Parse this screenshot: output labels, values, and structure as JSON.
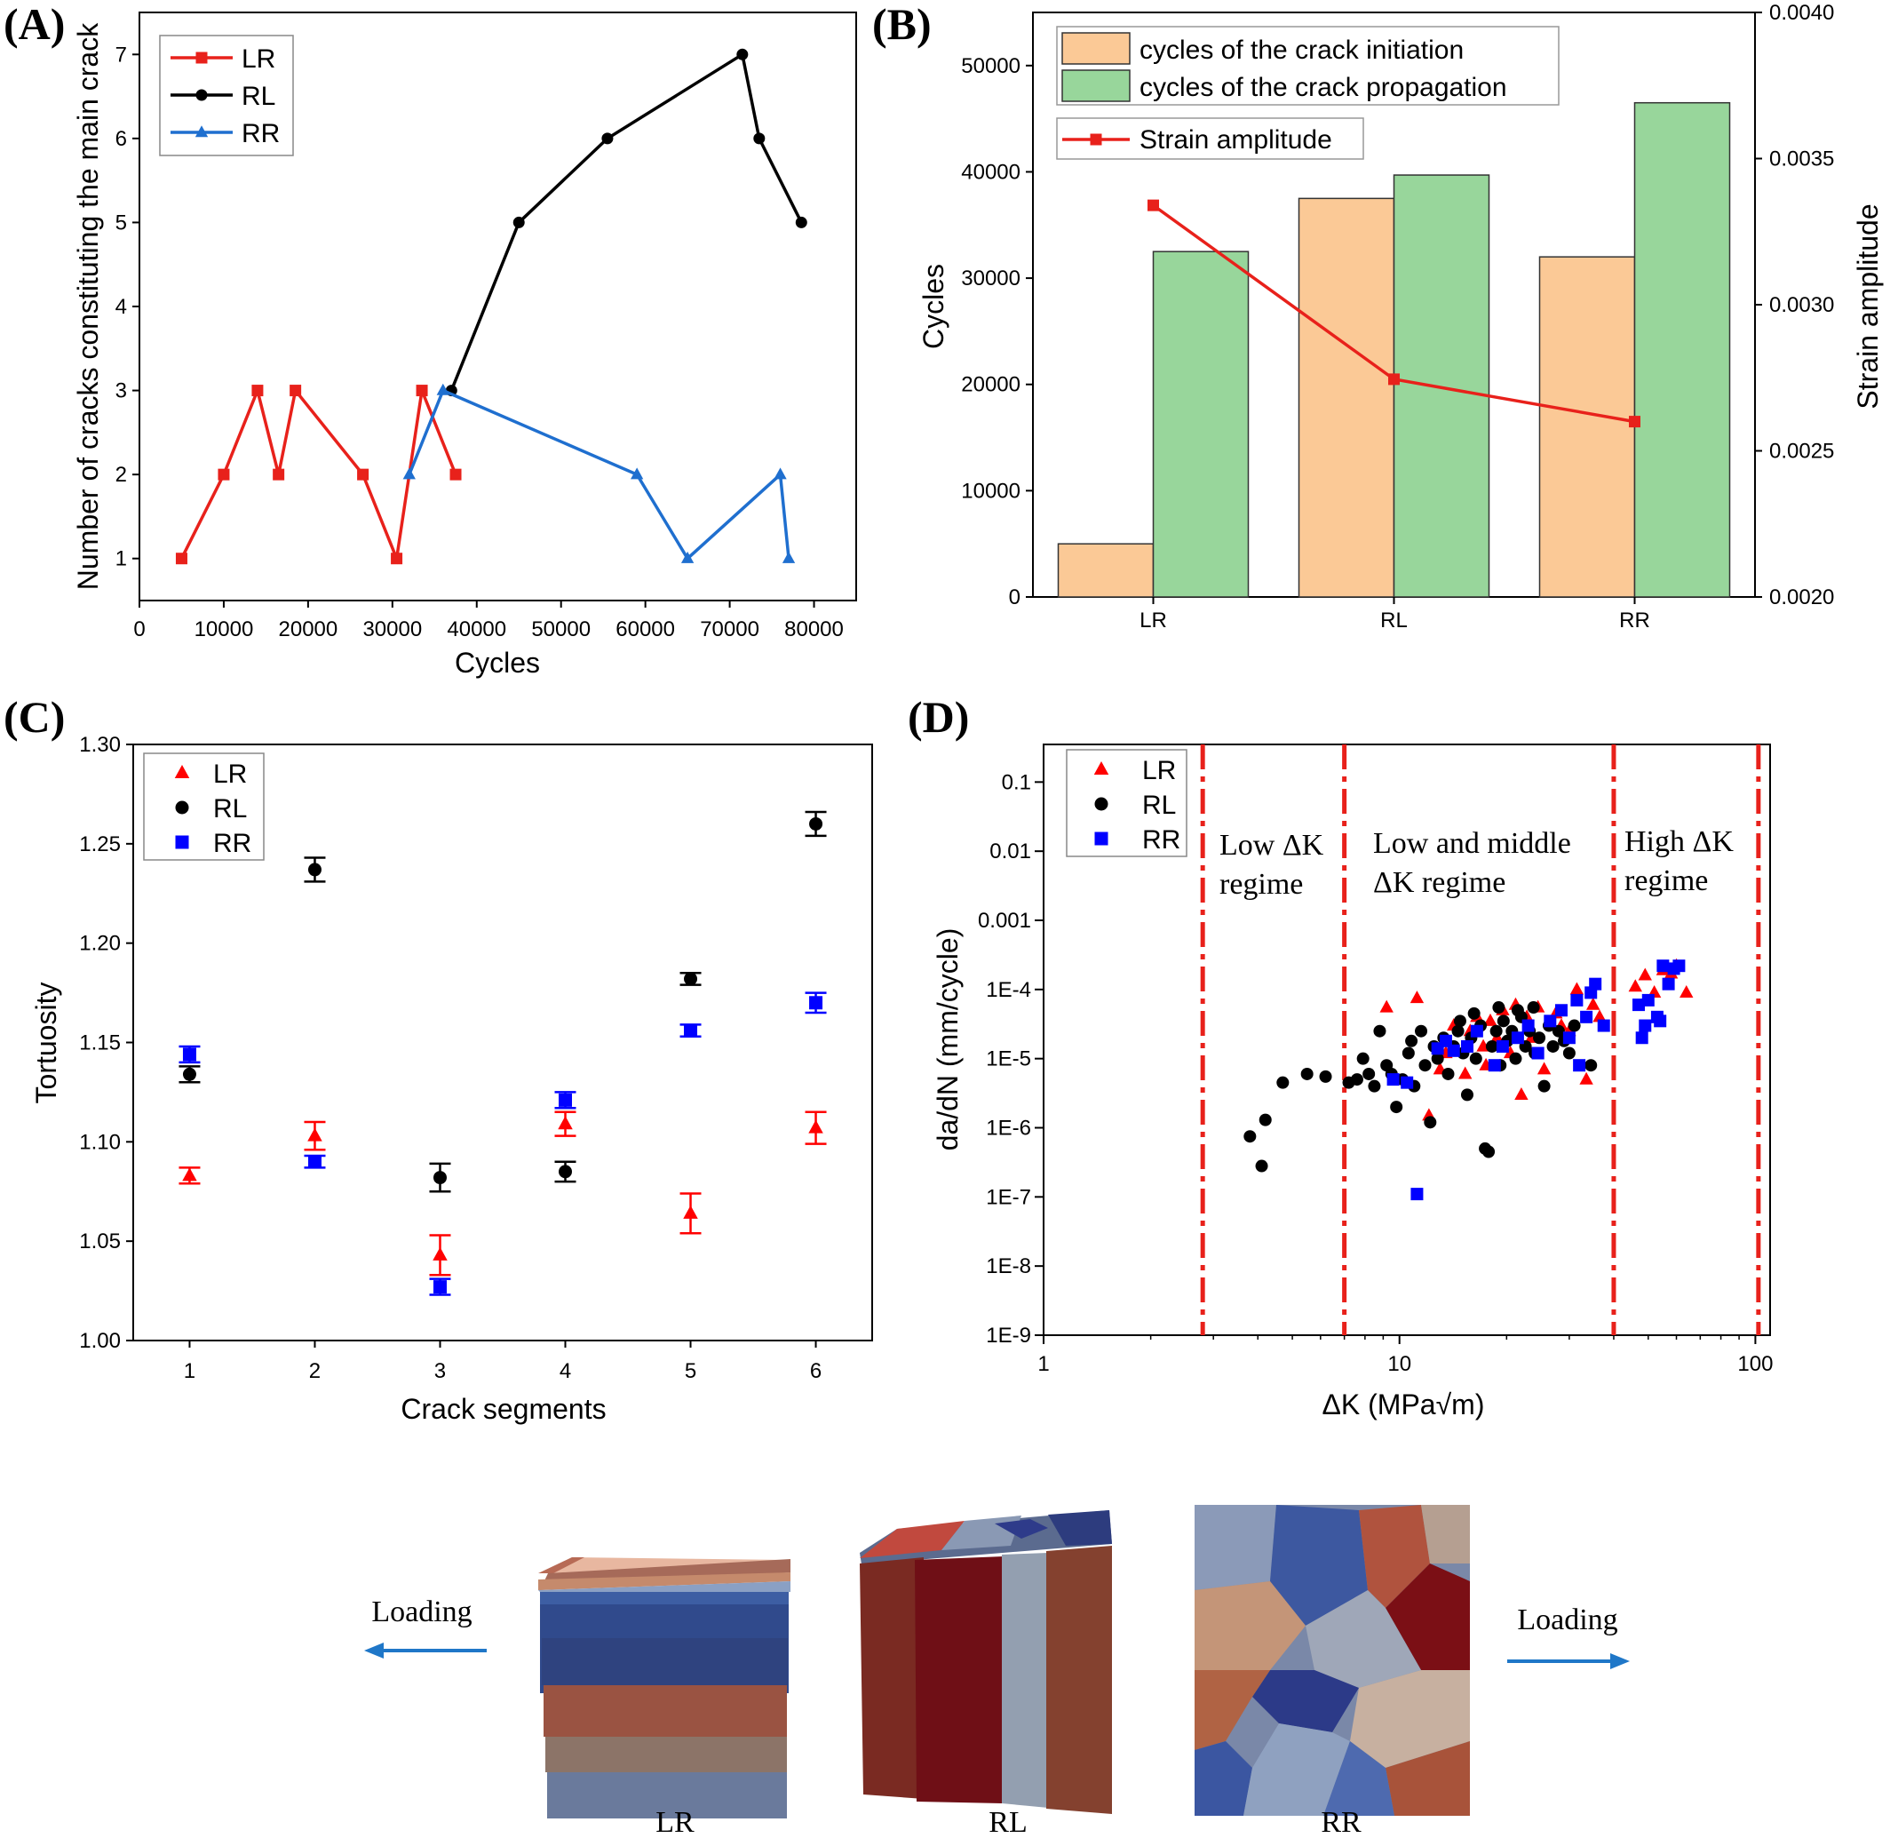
{
  "chart_data": [
    {
      "panel": "(A)",
      "type": "line",
      "xlabel": "Cycles",
      "ylabel": "Number of cracks constituting the main crack",
      "xlim": [
        0,
        85000
      ],
      "ylim": [
        0.5,
        7.5
      ],
      "xticks": [
        "0",
        "10000",
        "20000",
        "30000",
        "40000",
        "50000",
        "60000",
        "70000",
        "80000"
      ],
      "yticks": [
        "1",
        "2",
        "3",
        "4",
        "5",
        "6",
        "7"
      ],
      "legend_position": "top-left",
      "series": [
        {
          "name": "LR",
          "color": "#e8211b",
          "marker": "square",
          "x": [
            5000,
            10000,
            14000,
            16500,
            18500,
            26500,
            30500,
            33500,
            37500
          ],
          "y": [
            1,
            2,
            3,
            2,
            3,
            2,
            1,
            3,
            2
          ]
        },
        {
          "name": "RL",
          "color": "#000000",
          "marker": "circle",
          "x": [
            37000,
            45000,
            55500,
            71500,
            73500,
            78500
          ],
          "y": [
            3,
            5,
            6,
            7,
            6,
            5
          ]
        },
        {
          "name": "RR",
          "color": "#1f6fcf",
          "marker": "triangle",
          "x": [
            32000,
            36000,
            59000,
            65000,
            76000,
            77000
          ],
          "y": [
            2,
            3,
            2,
            1,
            2,
            1
          ]
        }
      ]
    },
    {
      "panel": "(B)",
      "type": "bar",
      "categories": [
        "LR",
        "RL",
        "RR"
      ],
      "ylabel": "Cycles",
      "y2label": "Strain amplitude",
      "ylim": [
        0,
        55000
      ],
      "y2lim": [
        0.002,
        0.004
      ],
      "yticks": [
        "0",
        "10000",
        "20000",
        "30000",
        "40000",
        "50000"
      ],
      "y2ticks": [
        "0.0020",
        "0.0025",
        "0.0030",
        "0.0035",
        "0.0040"
      ],
      "legend_position": "top",
      "series": [
        {
          "name": "cycles of the crack initiation",
          "color": "#fbc996",
          "values": [
            5000,
            37500,
            32000
          ]
        },
        {
          "name": "cycles of the crack propagation",
          "color": "#98d69b",
          "values": [
            32500,
            39700,
            46500
          ]
        }
      ],
      "line_series": {
        "name": "Strain amplitude",
        "color": "#e8211b",
        "values": [
          0.00334,
          0.002745,
          0.0026
        ]
      }
    },
    {
      "panel": "(C)",
      "type": "scatter",
      "xlabel": "Crack segments",
      "ylabel": "Tortuosity",
      "xlim": [
        0.55,
        6.45
      ],
      "ylim": [
        1.0,
        1.3
      ],
      "xticks": [
        "1",
        "2",
        "3",
        "4",
        "5",
        "6"
      ],
      "yticks": [
        "1.00",
        "1.05",
        "1.10",
        "1.15",
        "1.20",
        "1.25",
        "1.30"
      ],
      "legend_position": "top-left",
      "series": [
        {
          "name": "LR",
          "color": "#ff0000",
          "marker": "triangle",
          "x": [
            1,
            2,
            3,
            4,
            5,
            6
          ],
          "y": [
            1.083,
            1.103,
            1.043,
            1.109,
            1.064,
            1.107
          ],
          "err": [
            0.004,
            0.007,
            0.01,
            0.006,
            0.01,
            0.008
          ]
        },
        {
          "name": "RL",
          "color": "#000000",
          "marker": "circle",
          "x": [
            1,
            2,
            3,
            4,
            5,
            6
          ],
          "y": [
            1.134,
            1.237,
            1.082,
            1.085,
            1.182,
            1.26
          ],
          "err": [
            0.004,
            0.006,
            0.007,
            0.005,
            0.003,
            0.006
          ]
        },
        {
          "name": "RR",
          "color": "#0000ff",
          "marker": "square",
          "x": [
            1,
            2,
            3,
            4,
            5,
            6
          ],
          "y": [
            1.144,
            1.09,
            1.027,
            1.121,
            1.156,
            1.17
          ],
          "err": [
            0.004,
            0.003,
            0.004,
            0.004,
            0.003,
            0.005
          ]
        }
      ]
    },
    {
      "panel": "(D)",
      "type": "scatter",
      "xlabel": "ΔK (MPa√m)",
      "ylabel": "da/dN (mm/cycle)",
      "xscale": "log",
      "yscale": "log",
      "xlim": [
        1,
        110
      ],
      "ylim": [
        1e-09,
        0.35
      ],
      "xticks": [
        "1",
        "10",
        "100"
      ],
      "yticks": [
        "1E-9",
        "1E-8",
        "1E-7",
        "1E-6",
        "1E-5",
        "1E-4",
        "0.001",
        "0.01",
        "0.1"
      ],
      "legend_position": "top-left",
      "regime_boundaries": [
        2.8,
        7.0,
        40.0,
        102.0
      ],
      "regime_labels": [
        {
          "lines": [
            "Low ΔK",
            "regime"
          ]
        },
        {
          "lines": [
            "Low  and middle",
            "ΔK regime"
          ]
        },
        {
          "lines": [
            "High ΔK",
            "regime"
          ]
        }
      ],
      "series": [
        {
          "name": "LR",
          "color": "#ff0000",
          "marker": "triangle",
          "points": [
            [
              9.2,
              5.5e-05
            ],
            [
              11.2,
              7.5e-05
            ],
            [
              12.1,
              1.5e-06
            ],
            [
              13.5,
              1.2e-05
            ],
            [
              14.2,
              3e-05
            ],
            [
              15.3,
              6e-06
            ],
            [
              15.8,
              2.5e-05
            ],
            [
              16.5,
              4e-05
            ],
            [
              17.2,
              1.5e-05
            ],
            [
              18,
              3.5e-05
            ],
            [
              18.8,
              2e-05
            ],
            [
              19.5,
              5e-05
            ],
            [
              20.5,
              1.2e-05
            ],
            [
              21.2,
              6e-05
            ],
            [
              22,
              3e-06
            ],
            [
              22.8,
              4e-05
            ],
            [
              23.5,
              2e-05
            ],
            [
              25.5,
              7e-06
            ],
            [
              27.5,
              4.5e-05
            ],
            [
              28.5,
              3e-05
            ],
            [
              31.5,
              0.0001
            ],
            [
              33.5,
              5e-06
            ],
            [
              35,
              6e-05
            ],
            [
              36.5,
              4e-05
            ],
            [
              46,
              0.00011
            ],
            [
              49,
              0.00016
            ],
            [
              52,
              9e-05
            ],
            [
              55,
              0.00019
            ],
            [
              58,
              0.00017
            ],
            [
              60,
              0.00022
            ],
            [
              64,
              9e-05
            ],
            [
              17.5,
              8e-06
            ],
            [
              24.5,
              5.5e-05
            ],
            [
              30,
              2.5e-05
            ],
            [
              13,
              7e-06
            ]
          ]
        },
        {
          "name": "RL",
          "color": "#000000",
          "marker": "circle",
          "points": [
            [
              3.8,
              7.5e-07
            ],
            [
              4.1,
              2.8e-07
            ],
            [
              4.2,
              1.3e-06
            ],
            [
              4.7,
              4.5e-06
            ],
            [
              5.5,
              6e-06
            ],
            [
              6.2,
              5.5e-06
            ],
            [
              7.2,
              4.5e-06
            ],
            [
              7.6,
              5e-06
            ],
            [
              7.9,
              1e-05
            ],
            [
              8.2,
              6e-06
            ],
            [
              8.5,
              4e-06
            ],
            [
              8.8,
              2.5e-05
            ],
            [
              9.2,
              8e-06
            ],
            [
              9.5,
              6e-06
            ],
            [
              9.8,
              2e-06
            ],
            [
              10.2,
              5e-06
            ],
            [
              10.6,
              1.2e-05
            ],
            [
              11,
              4e-06
            ],
            [
              11.5,
              2.5e-05
            ],
            [
              11.8,
              8e-06
            ],
            [
              12.2,
              1.2e-06
            ],
            [
              12.8,
              1e-05
            ],
            [
              13.3,
              2e-05
            ],
            [
              13.7,
              6e-06
            ],
            [
              14.2,
              1.5e-05
            ],
            [
              14.6,
              2.5e-05
            ],
            [
              15.1,
              1.2e-05
            ],
            [
              15.5,
              3e-06
            ],
            [
              15.9,
              2e-05
            ],
            [
              16.4,
              1e-05
            ],
            [
              16.9,
              3e-05
            ],
            [
              17.4,
              5e-07
            ],
            [
              17.8,
              4.5e-07
            ],
            [
              18.2,
              1.5e-05
            ],
            [
              18.7,
              2.5e-05
            ],
            [
              19.2,
              8e-06
            ],
            [
              19.6,
              3.5e-05
            ],
            [
              20.1,
              1.8e-05
            ],
            [
              20.7,
              2.5e-05
            ],
            [
              21.2,
              1e-05
            ],
            [
              22,
              4e-05
            ],
            [
              22.6,
              1.5e-05
            ],
            [
              23.2,
              2.5e-05
            ],
            [
              24,
              1.2e-05
            ],
            [
              24.7,
              2e-05
            ],
            [
              25.5,
              4e-06
            ],
            [
              26.3,
              3e-05
            ],
            [
              27,
              1.5e-05
            ],
            [
              28,
              2.5e-05
            ],
            [
              29,
              1.8e-05
            ],
            [
              30,
              1.2e-05
            ],
            [
              31,
              3e-05
            ],
            [
              34.5,
              8e-06
            ],
            [
              14.8,
              3.5e-05
            ],
            [
              16.2,
              4.5e-05
            ],
            [
              19,
              5.5e-05
            ],
            [
              21.5,
              5e-05
            ],
            [
              12.5,
              1.5e-05
            ],
            [
              10.8,
              1.8e-05
            ],
            [
              23.8,
              5.5e-05
            ]
          ]
        },
        {
          "name": "RR",
          "color": "#0000ff",
          "marker": "square",
          "points": [
            [
              11.2,
              1.1e-07
            ],
            [
              9.6,
              5e-06
            ],
            [
              10.5,
              4.5e-06
            ],
            [
              12.8,
              1.4e-05
            ],
            [
              13.5,
              1.8e-05
            ],
            [
              14.2,
              1.3e-05
            ],
            [
              15.5,
              1.5e-05
            ],
            [
              16.5,
              2.5e-05
            ],
            [
              18.5,
              8e-06
            ],
            [
              19.5,
              1.5e-05
            ],
            [
              21.5,
              2e-05
            ],
            [
              23,
              3e-05
            ],
            [
              24.5,
              1.2e-05
            ],
            [
              26.5,
              3.5e-05
            ],
            [
              28.5,
              5e-05
            ],
            [
              30,
              2e-05
            ],
            [
              31.5,
              7e-05
            ],
            [
              32,
              8e-06
            ],
            [
              33.5,
              4e-05
            ],
            [
              34.5,
              9e-05
            ],
            [
              35.5,
              0.00012
            ],
            [
              37.5,
              3e-05
            ],
            [
              47,
              6e-05
            ],
            [
              48,
              2e-05
            ],
            [
              49,
              3e-05
            ],
            [
              50,
              7e-05
            ],
            [
              53,
              4e-05
            ],
            [
              54,
              3.5e-05
            ],
            [
              55,
              0.00022
            ],
            [
              57,
              0.00012
            ],
            [
              59,
              0.0002
            ],
            [
              61,
              0.00022
            ]
          ]
        }
      ]
    }
  ],
  "panels": {
    "a": {
      "letter": "(A)"
    },
    "b": {
      "letter": "(B)"
    },
    "c": {
      "letter": "(C)"
    },
    "d": {
      "letter": "(D)"
    }
  },
  "bottom": {
    "left_loading": "Loading",
    "right_loading": "Loading",
    "cube_labels": [
      "LR",
      "RL",
      "RR"
    ],
    "arrow_color": "#1f77c8"
  }
}
